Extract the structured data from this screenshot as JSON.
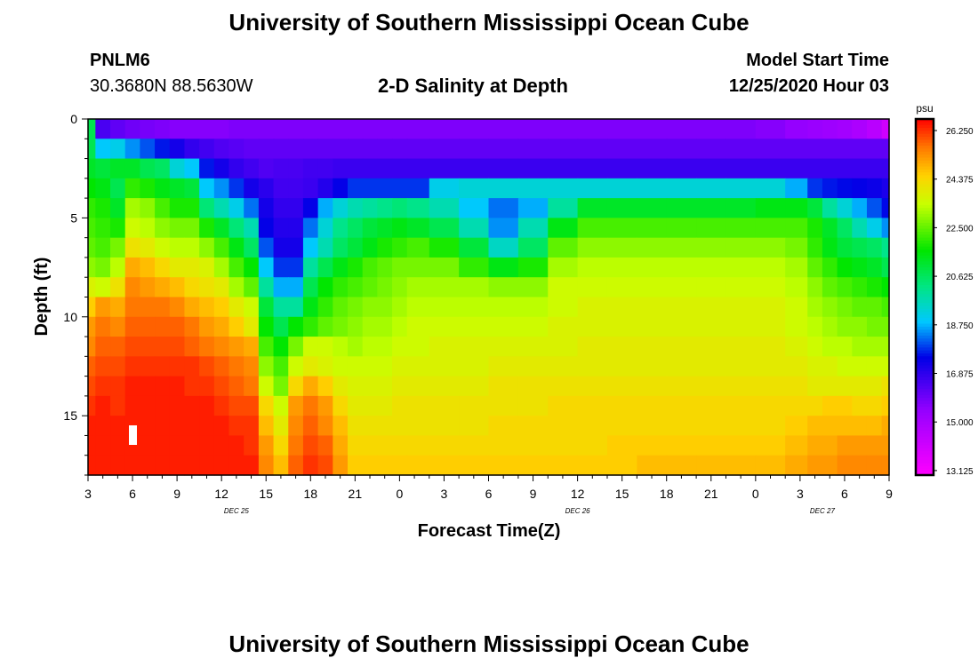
{
  "header": {
    "title": "University of Southern Mississippi Ocean Cube",
    "station_id": "PNLM6",
    "station_coords": "30.3680N 88.5630W",
    "plot_title": "2-D Salinity at Depth",
    "model_label": "Model Start Time",
    "model_time": "12/25/2020 Hour 03"
  },
  "footer": {
    "title": "University of Southern Mississippi Ocean Cube"
  },
  "chart_data": {
    "type": "heatmap",
    "title": "2-D Salinity at Depth",
    "xlabel": "Forecast Time(Z)",
    "ylabel": "Depth (ft)",
    "x_range_hours_from_start": [
      0,
      54
    ],
    "y_range_ft": [
      0,
      18
    ],
    "x_tick_labels": [
      "3",
      "6",
      "9",
      "12",
      "15",
      "18",
      "21",
      "0",
      "3",
      "6",
      "9",
      "12",
      "15",
      "18",
      "21",
      "0",
      "3",
      "6",
      "9"
    ],
    "date_labels": [
      {
        "text": "DEC 25",
        "at_hour": 10
      },
      {
        "text": "DEC 26",
        "at_hour": 33
      },
      {
        "text": "DEC 27",
        "at_hour": 49.5
      }
    ],
    "y_ticks": [
      0,
      5,
      10,
      15
    ],
    "colorbar": {
      "unit": "psu",
      "labels": [
        "26.250",
        "24.375",
        "22.500",
        "20.625",
        "18.750",
        "16.875",
        "15.000",
        "13.125"
      ],
      "min": 13.125,
      "max": 26.25
    },
    "time_hours": [
      0,
      1,
      2,
      3,
      4,
      5,
      6,
      7,
      8,
      9,
      10,
      11,
      12,
      13,
      14,
      15,
      16,
      17,
      18,
      19,
      20,
      21,
      22,
      24,
      26,
      28,
      30,
      32,
      34,
      36,
      38,
      40,
      42,
      44,
      46,
      48,
      49,
      50,
      51,
      52,
      53,
      54
    ],
    "depths_ft": [
      0.5,
      1.5,
      2.5,
      3.5,
      4.5,
      5.5,
      6.5,
      7.5,
      8.5,
      9.5,
      10.5,
      11.5,
      12.5,
      13.5,
      14.5,
      15.5,
      16.5,
      17.5
    ],
    "salinity_psu": [
      [
        20.6,
        16.5,
        16.2,
        16.0,
        15.9,
        15.8,
        15.7,
        15.7,
        15.7,
        15.7,
        15.8,
        15.8,
        15.8,
        15.8,
        15.8,
        15.8,
        15.8,
        15.8,
        15.8,
        15.8,
        15.8,
        15.8,
        15.8,
        15.8,
        15.8,
        15.8,
        15.8,
        15.8,
        15.8,
        15.8,
        15.8,
        15.8,
        15.8,
        15.8,
        15.7,
        15.5,
        15.4,
        15.3,
        15.2,
        15.0,
        14.7,
        14.2
      ],
      [
        20.6,
        18.8,
        19.0,
        18.4,
        18.0,
        17.6,
        17.2,
        16.8,
        16.6,
        16.4,
        16.3,
        16.2,
        16.2,
        16.2,
        16.2,
        16.2,
        16.2,
        16.2,
        16.2,
        16.2,
        16.2,
        16.2,
        16.2,
        16.2,
        16.2,
        16.2,
        16.2,
        16.2,
        16.2,
        16.2,
        16.2,
        16.2,
        16.2,
        16.2,
        16.2,
        16.2,
        16.2,
        16.2,
        16.2,
        16.2,
        16.2,
        16.2
      ],
      [
        21.0,
        20.8,
        21.0,
        21.0,
        20.6,
        20.4,
        19.2,
        18.8,
        17.6,
        17.2,
        16.8,
        16.6,
        16.4,
        16.5,
        16.5,
        16.6,
        16.6,
        16.7,
        16.7,
        16.7,
        16.7,
        16.7,
        16.7,
        16.7,
        16.7,
        16.7,
        16.7,
        16.7,
        16.7,
        16.7,
        16.7,
        16.7,
        16.7,
        16.7,
        16.7,
        16.7,
        16.7,
        16.7,
        16.7,
        16.7,
        16.7,
        16.7
      ],
      [
        21.4,
        21.2,
        20.6,
        21.8,
        21.6,
        21.2,
        21.0,
        20.8,
        18.8,
        18.4,
        17.8,
        17.2,
        16.9,
        16.6,
        16.6,
        16.7,
        17.0,
        17.4,
        17.8,
        17.8,
        17.8,
        17.8,
        17.8,
        19.0,
        19.2,
        19.2,
        19.2,
        19.2,
        19.2,
        19.2,
        19.2,
        19.2,
        19.2,
        19.2,
        19.2,
        18.6,
        17.8,
        17.6,
        17.5,
        17.4,
        17.3,
        17.1
      ],
      [
        21.8,
        21.6,
        21.0,
        22.8,
        22.6,
        22.0,
        21.6,
        21.6,
        20.2,
        19.6,
        19.0,
        18.2,
        17.2,
        16.8,
        16.8,
        17.4,
        18.6,
        19.2,
        19.6,
        19.8,
        20.0,
        20.2,
        20.0,
        19.6,
        18.8,
        18.2,
        18.6,
        19.8,
        21.0,
        21.0,
        21.0,
        21.0,
        21.0,
        21.0,
        21.2,
        21.2,
        20.8,
        19.8,
        19.2,
        18.6,
        18.0,
        17.5
      ],
      [
        22.0,
        21.8,
        21.6,
        23.2,
        23.0,
        22.6,
        22.4,
        22.4,
        21.6,
        21.0,
        20.2,
        19.6,
        17.4,
        17.0,
        17.0,
        18.2,
        19.2,
        20.0,
        20.4,
        20.8,
        21.0,
        21.2,
        21.0,
        20.6,
        19.6,
        18.4,
        19.6,
        21.2,
        22.0,
        22.0,
        22.0,
        22.0,
        22.0,
        22.0,
        22.0,
        22.0,
        21.6,
        21.0,
        20.4,
        19.6,
        19.0,
        18.4
      ],
      [
        22.2,
        22.0,
        22.4,
        23.8,
        23.6,
        23.2,
        23.0,
        23.0,
        22.6,
        22.0,
        21.2,
        20.4,
        18.0,
        17.2,
        17.2,
        18.8,
        19.6,
        20.4,
        20.8,
        21.2,
        21.6,
        21.8,
        22.0,
        21.6,
        20.8,
        19.4,
        20.4,
        22.2,
        22.6,
        22.6,
        22.6,
        22.6,
        22.6,
        22.6,
        22.6,
        22.4,
        21.8,
        21.2,
        20.8,
        20.6,
        20.4,
        20.0
      ],
      [
        22.6,
        22.4,
        23.0,
        24.6,
        24.4,
        24.0,
        23.6,
        23.6,
        23.4,
        22.8,
        22.0,
        21.4,
        18.8,
        17.8,
        17.8,
        19.8,
        20.6,
        21.2,
        21.6,
        22.0,
        22.2,
        22.4,
        22.4,
        22.4,
        21.8,
        21.2,
        21.6,
        22.8,
        23.0,
        23.0,
        23.0,
        23.0,
        23.0,
        23.0,
        23.0,
        22.8,
        22.2,
        21.8,
        21.4,
        21.2,
        21.0,
        20.6
      ],
      [
        23.4,
        23.2,
        23.8,
        25.0,
        24.8,
        24.6,
        24.4,
        24.0,
        23.8,
        23.6,
        22.8,
        22.2,
        19.8,
        18.6,
        18.6,
        20.6,
        21.4,
        21.8,
        22.0,
        22.2,
        22.4,
        22.6,
        22.8,
        22.8,
        22.8,
        22.6,
        22.6,
        23.2,
        23.2,
        23.2,
        23.2,
        23.2,
        23.2,
        23.2,
        23.2,
        23.0,
        22.6,
        22.2,
        22.0,
        21.8,
        21.6,
        21.4
      ],
      [
        24.2,
        24.8,
        24.6,
        25.2,
        25.2,
        25.2,
        25.0,
        24.6,
        24.4,
        24.2,
        23.6,
        23.2,
        20.8,
        19.8,
        19.8,
        21.2,
        21.8,
        22.2,
        22.4,
        22.6,
        22.6,
        22.8,
        23.0,
        23.0,
        23.0,
        23.0,
        23.0,
        23.2,
        23.4,
        23.4,
        23.4,
        23.4,
        23.4,
        23.4,
        23.4,
        23.2,
        22.8,
        22.6,
        22.4,
        22.2,
        22.2,
        22.0
      ],
      [
        24.8,
        25.2,
        25.0,
        25.4,
        25.4,
        25.4,
        25.4,
        25.2,
        24.8,
        24.6,
        24.2,
        23.6,
        21.4,
        20.6,
        21.4,
        21.8,
        22.2,
        22.4,
        22.6,
        22.8,
        22.8,
        23.0,
        23.2,
        23.2,
        23.2,
        23.2,
        23.2,
        23.4,
        23.4,
        23.4,
        23.4,
        23.4,
        23.4,
        23.4,
        23.4,
        23.2,
        23.0,
        22.8,
        22.6,
        22.6,
        22.4,
        22.4
      ],
      [
        25.0,
        25.4,
        25.4,
        25.6,
        25.6,
        25.6,
        25.6,
        25.4,
        25.2,
        25.0,
        24.8,
        24.6,
        22.0,
        21.4,
        22.4,
        23.2,
        23.2,
        23.0,
        22.8,
        23.0,
        23.0,
        23.2,
        23.2,
        23.4,
        23.4,
        23.4,
        23.4,
        23.4,
        23.6,
        23.6,
        23.6,
        23.6,
        23.6,
        23.6,
        23.6,
        23.4,
        23.2,
        23.0,
        23.0,
        22.8,
        22.8,
        22.8
      ],
      [
        25.4,
        25.6,
        25.6,
        25.8,
        25.8,
        25.8,
        25.8,
        25.8,
        25.6,
        25.4,
        25.2,
        25.0,
        22.6,
        22.0,
        23.2,
        23.6,
        23.4,
        23.2,
        23.2,
        23.2,
        23.2,
        23.4,
        23.4,
        23.4,
        23.4,
        23.6,
        23.6,
        23.6,
        23.6,
        23.6,
        23.6,
        23.6,
        23.6,
        23.6,
        23.6,
        23.6,
        23.4,
        23.4,
        23.2,
        23.2,
        23.2,
        23.2
      ],
      [
        25.6,
        25.8,
        25.8,
        26.0,
        26.0,
        26.0,
        26.0,
        25.8,
        25.8,
        25.6,
        25.4,
        25.2,
        23.2,
        22.4,
        24.0,
        24.6,
        24.2,
        23.6,
        23.4,
        23.4,
        23.4,
        23.6,
        23.6,
        23.6,
        23.6,
        23.8,
        23.8,
        23.8,
        23.8,
        23.8,
        23.8,
        23.8,
        23.8,
        23.8,
        23.8,
        23.8,
        23.6,
        23.6,
        23.6,
        23.6,
        23.6,
        23.8
      ],
      [
        25.8,
        26.0,
        25.8,
        26.0,
        26.0,
        26.0,
        26.0,
        26.0,
        26.0,
        25.8,
        25.6,
        25.6,
        24.0,
        23.2,
        24.8,
        25.2,
        24.8,
        24.0,
        23.6,
        23.6,
        23.6,
        23.8,
        23.8,
        23.8,
        23.8,
        23.8,
        23.8,
        24.0,
        24.0,
        24.0,
        24.0,
        24.0,
        24.0,
        24.0,
        24.0,
        24.0,
        24.0,
        24.2,
        24.2,
        24.0,
        24.0,
        24.2
      ],
      [
        26.0,
        26.0,
        26.0,
        26.0,
        26.0,
        26.0,
        26.0,
        26.0,
        26.0,
        26.0,
        25.8,
        25.8,
        24.4,
        23.6,
        25.0,
        25.4,
        25.0,
        24.4,
        23.8,
        23.8,
        23.8,
        23.8,
        23.8,
        23.8,
        23.8,
        24.0,
        24.0,
        24.0,
        24.0,
        24.0,
        24.0,
        24.0,
        24.0,
        24.0,
        24.0,
        24.2,
        24.4,
        24.4,
        24.4,
        24.4,
        24.4,
        24.6
      ],
      [
        26.0,
        26.0,
        26.0,
        26.0,
        26.0,
        26.0,
        26.0,
        26.0,
        26.0,
        26.0,
        26.0,
        25.8,
        24.8,
        24.0,
        25.2,
        25.6,
        25.4,
        24.6,
        24.0,
        24.0,
        24.0,
        24.0,
        24.0,
        24.0,
        24.0,
        24.0,
        24.0,
        24.0,
        24.0,
        24.2,
        24.2,
        24.2,
        24.2,
        24.2,
        24.2,
        24.4,
        24.6,
        24.6,
        24.8,
        24.8,
        24.8,
        24.8
      ],
      [
        26.0,
        26.0,
        26.0,
        26.0,
        26.0,
        26.0,
        26.0,
        26.0,
        26.0,
        26.0,
        26.0,
        26.0,
        25.0,
        24.4,
        25.4,
        25.8,
        25.6,
        24.8,
        24.2,
        24.2,
        24.2,
        24.2,
        24.2,
        24.2,
        24.2,
        24.2,
        24.2,
        24.2,
        24.2,
        24.2,
        24.4,
        24.4,
        24.4,
        24.4,
        24.4,
        24.6,
        24.8,
        24.8,
        25.0,
        25.0,
        25.0,
        25.0
      ]
    ]
  }
}
